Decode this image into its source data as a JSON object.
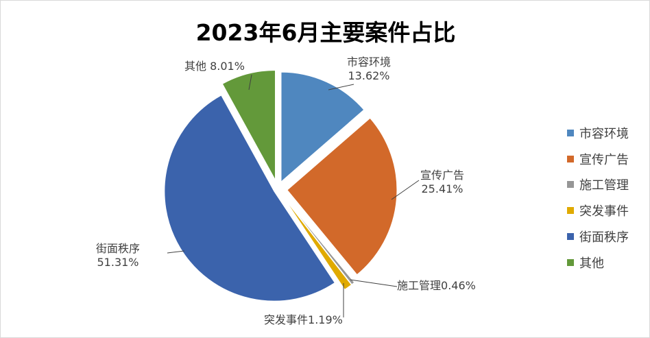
{
  "chart_data": {
    "type": "pie",
    "title": "2023年6月主要案件占比",
    "categories": [
      "市容环境",
      "宣传广告",
      "施工管理",
      "突发事件",
      "街面秩序",
      "其他"
    ],
    "values": [
      13.62,
      25.41,
      0.46,
      1.19,
      51.31,
      8.01
    ],
    "data_labels": [
      "13.62%",
      "25.41%",
      "0.46%",
      "1.19%",
      "51.31%",
      "8.01%"
    ],
    "colors": [
      "#4F87BF",
      "#D2692A",
      "#969696",
      "#E0AA00",
      "#3B63AC",
      "#63993A"
    ],
    "start_angle": "12 o'clock",
    "direction": "clockwise",
    "exploded": true,
    "legend": "right"
  }
}
